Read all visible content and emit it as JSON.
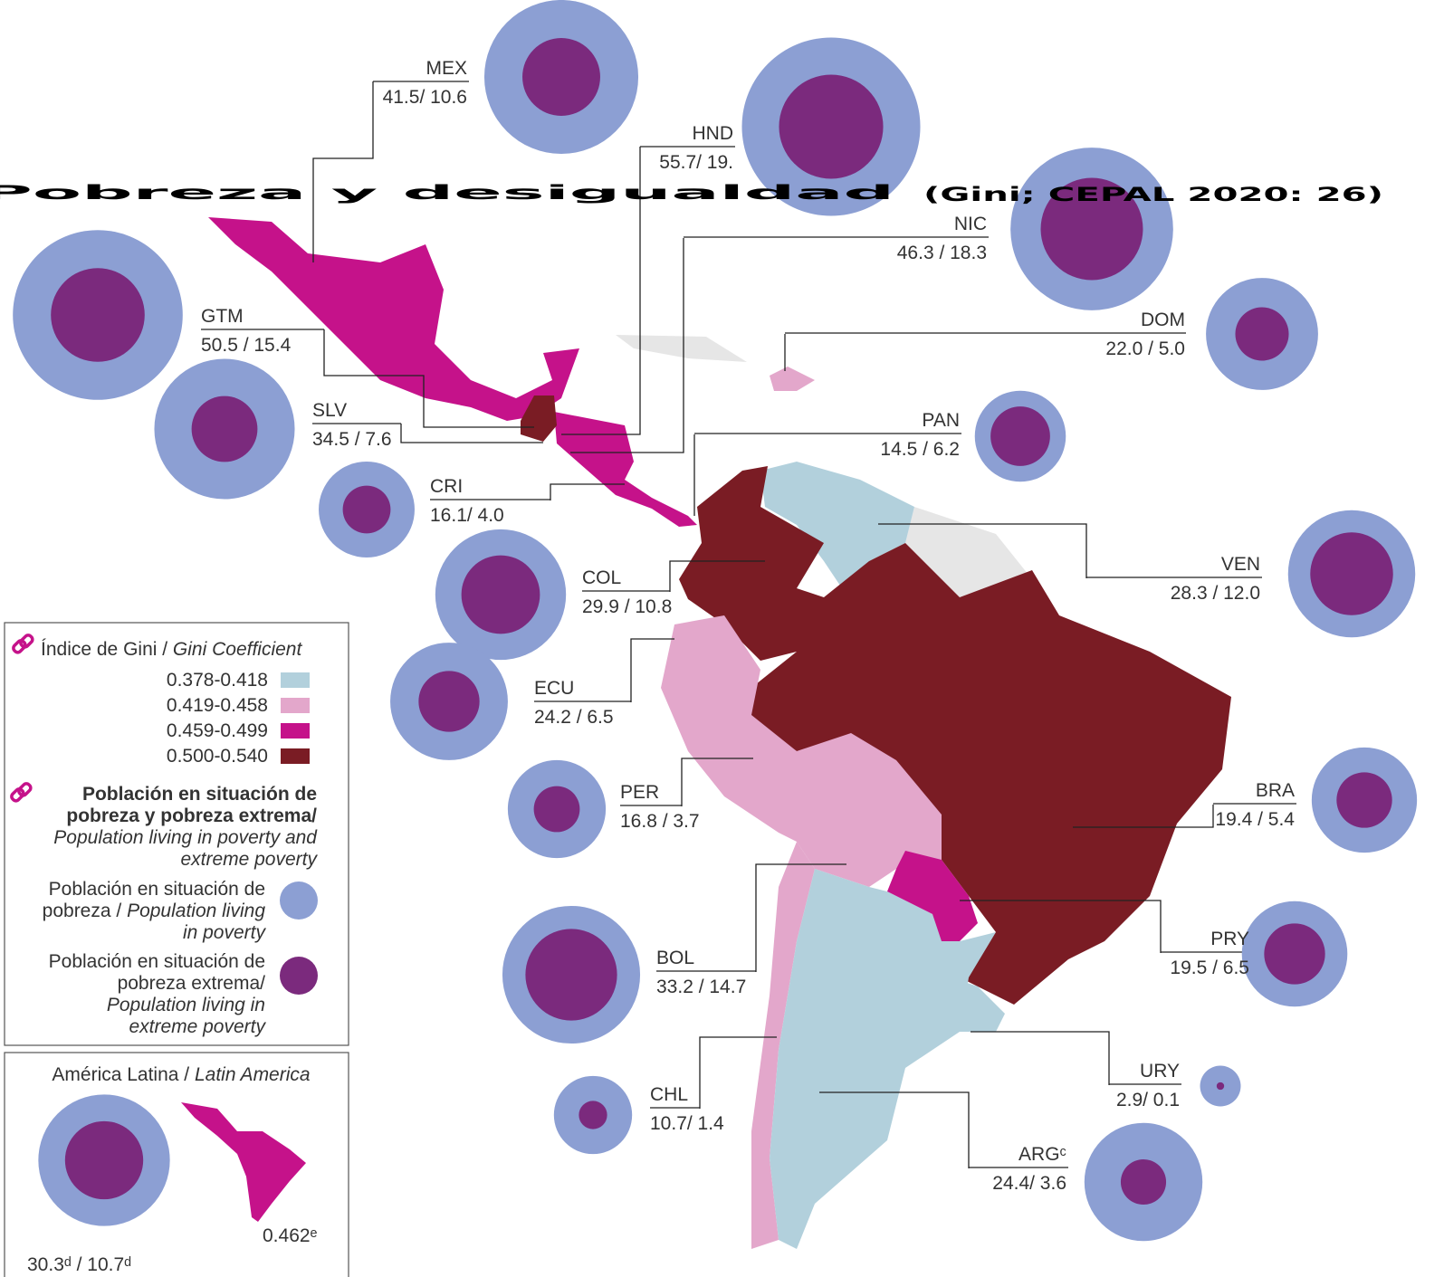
{
  "title": "Pobreza y desigualdad",
  "subtitle": "(Gini; CEPAL 2020: 26)",
  "circle_colors": {
    "poverty": "#8c9fd3",
    "extreme": "#7b2a7d"
  },
  "countries": [
    {
      "code": "MEX",
      "label": "41.5/ 10.6",
      "poverty": 41.5,
      "extreme": 10.6
    },
    {
      "code": "HND",
      "label": "55.7/ 19.",
      "poverty": 55.7,
      "extreme": 19.0
    },
    {
      "code": "NIC",
      "label": "46.3 / 18.3",
      "poverty": 46.3,
      "extreme": 18.3
    },
    {
      "code": "GTM",
      "label": "50.5 / 15.4",
      "poverty": 50.5,
      "extreme": 15.4
    },
    {
      "code": "SLV",
      "label": "34.5 / 7.6",
      "poverty": 34.5,
      "extreme": 7.6
    },
    {
      "code": "CRI",
      "label": "16.1/ 4.0",
      "poverty": 16.1,
      "extreme": 4.0
    },
    {
      "code": "COL",
      "label": "29.9 / 10.8",
      "poverty": 29.9,
      "extreme": 10.8
    },
    {
      "code": "ECU",
      "label": "24.2 / 6.5",
      "poverty": 24.2,
      "extreme": 6.5
    },
    {
      "code": "PER",
      "label": "16.8 / 3.7",
      "poverty": 16.8,
      "extreme": 3.7
    },
    {
      "code": "BOL",
      "label": "33.2 / 14.7",
      "poverty": 33.2,
      "extreme": 14.7
    },
    {
      "code": "CHL",
      "label": "10.7/ 1.4",
      "poverty": 10.7,
      "extreme": 1.4
    },
    {
      "code": "DOM",
      "label": "22.0 / 5.0",
      "poverty": 22.0,
      "extreme": 5.0
    },
    {
      "code": "PAN",
      "label": "14.5 / 6.2",
      "poverty": 14.5,
      "extreme": 6.2
    },
    {
      "code": "VEN",
      "label": "28.3 / 12.0",
      "poverty": 28.3,
      "extreme": 12.0
    },
    {
      "code": "BRA",
      "label": "19.4 / 5.4",
      "poverty": 19.4,
      "extreme": 5.4
    },
    {
      "code": "PRY",
      "label": "19.5 / 6.5",
      "poverty": 19.5,
      "extreme": 6.5
    },
    {
      "code": "URY",
      "label": "2.9/ 0.1",
      "poverty": 2.9,
      "extreme": 0.1
    },
    {
      "code": "ARGᶜ",
      "label": "24.4/ 3.6",
      "poverty": 24.4,
      "extreme": 3.6
    }
  ],
  "legend": {
    "gini_title": [
      "Índice de Gini / ",
      "Gini Coefficient"
    ],
    "gini_classes": [
      {
        "label": "0.378-0.418",
        "color": "#b2d0dc"
      },
      {
        "label": "0.419-0.458",
        "color": "#e3a7cb"
      },
      {
        "label": "0.459-0.499",
        "color": "#c5128a"
      },
      {
        "label": "0.500-0.540",
        "color": "#7a1c24"
      }
    ],
    "poverty_title": [
      [
        "Población en situación de"
      ],
      [
        "pobreza y pobreza extrema/"
      ],
      [
        "Population living in poverty and"
      ],
      [
        "extreme poverty"
      ]
    ],
    "poverty_item": [
      [
        "Población en situación de"
      ],
      [
        "pobreza / ",
        "Population living"
      ],
      [
        "in poverty"
      ]
    ],
    "extreme_item": [
      [
        "Población en situación de"
      ],
      [
        "pobreza extrema/"
      ],
      [
        "Population living  in"
      ],
      [
        "extreme poverty"
      ]
    ]
  },
  "latin_america": {
    "title": [
      "América Latina / ",
      "Latin America"
    ],
    "label": "30.3ᵈ / 10.7ᵈ",
    "poverty": 30.3,
    "extreme": 10.7,
    "gini": "0.462ᵉ"
  }
}
